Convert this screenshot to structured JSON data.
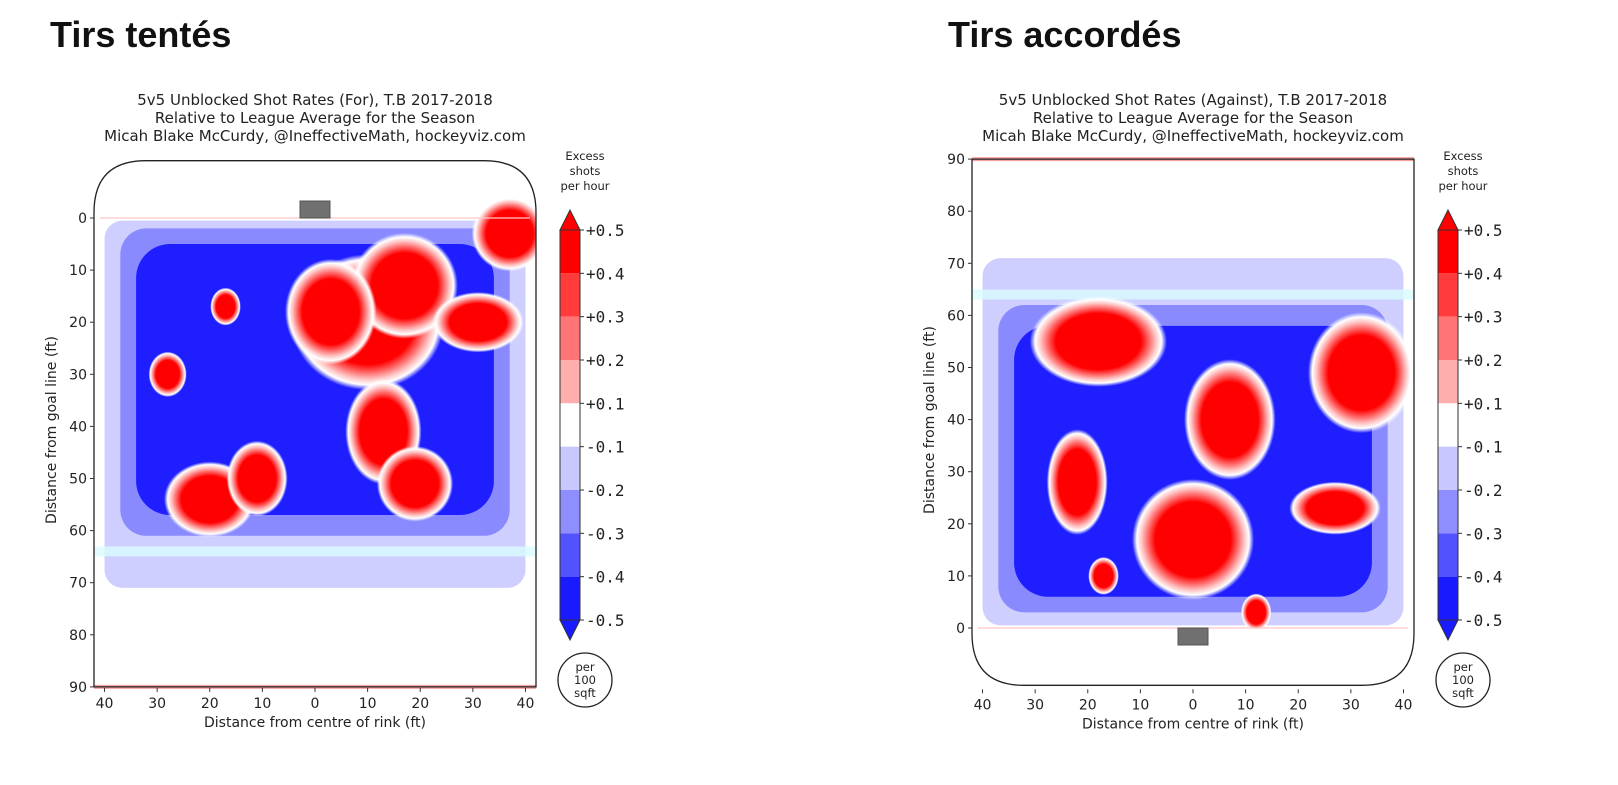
{
  "headings": {
    "left": "Tirs tentés",
    "right": "Tirs accordés"
  },
  "chart_data": [
    {
      "type": "heatmap",
      "title": [
        "5v5 Unblocked Shot Rates (For), T.B 2017-2018",
        "Relative to League Average for the Season",
        "Micah Blake McCurdy, @IneffectiveMath, hockeyviz.com"
      ],
      "xlabel": "Distance from centre of rink (ft)",
      "ylabel": "Distance from goal line (ft)",
      "x_ticks": [
        40,
        30,
        20,
        10,
        0,
        10,
        20,
        30,
        40
      ],
      "y_ticks": [
        0,
        10,
        20,
        30,
        40,
        50,
        60,
        70,
        80,
        90
      ],
      "y_direction": "down",
      "x_range": [
        -42,
        42
      ],
      "y_range": [
        -11,
        90
      ],
      "colorbar": {
        "title": [
          "Excess",
          "shots",
          "per hour"
        ],
        "ticks": [
          "+0.5",
          "+0.4",
          "+0.3",
          "+0.2",
          "+0.1",
          "-0.1",
          "-0.2",
          "-0.3",
          "-0.4",
          "-0.5"
        ],
        "unit": [
          "per",
          "100",
          "sqft"
        ]
      },
      "net_position": {
        "x": 0,
        "y": -2
      },
      "blobs": [
        {
          "x": 10,
          "y": 20,
          "rx": 10,
          "ry": 9,
          "level": 0.5
        },
        {
          "x": 17,
          "y": 13,
          "rx": 7,
          "ry": 7,
          "level": 0.5
        },
        {
          "x": 3,
          "y": 18,
          "rx": 6,
          "ry": 7,
          "level": 0.5
        },
        {
          "x": 31,
          "y": 20,
          "rx": 6,
          "ry": 4,
          "level": 0.5
        },
        {
          "x": 37,
          "y": 3,
          "rx": 5,
          "ry": 5,
          "level": 0.5
        },
        {
          "x": 13,
          "y": 41,
          "rx": 5,
          "ry": 7,
          "level": 0.5
        },
        {
          "x": 19,
          "y": 51,
          "rx": 5,
          "ry": 5,
          "level": 0.5
        },
        {
          "x": -20,
          "y": 54,
          "rx": 6,
          "ry": 5,
          "level": 0.5
        },
        {
          "x": -11,
          "y": 50,
          "rx": 4,
          "ry": 5,
          "level": 0.5
        },
        {
          "x": -28,
          "y": 30,
          "rx": 2.5,
          "ry": 3,
          "level": 0.5
        },
        {
          "x": -17,
          "y": 17,
          "rx": 2,
          "ry": 2.5,
          "level": 0.5
        }
      ]
    },
    {
      "type": "heatmap",
      "title": [
        "5v5 Unblocked Shot Rates (Against), T.B 2017-2018",
        "Relative to League Average for the Season",
        "Micah Blake McCurdy, @IneffectiveMath, hockeyviz.com"
      ],
      "xlabel": "Distance from centre of rink (ft)",
      "ylabel": "Distance from goal line (ft)",
      "x_ticks": [
        40,
        30,
        20,
        10,
        0,
        10,
        20,
        30,
        40
      ],
      "y_ticks": [
        90,
        80,
        70,
        60,
        50,
        40,
        30,
        20,
        10,
        0
      ],
      "y_direction": "up",
      "x_range": [
        -42,
        42
      ],
      "y_range": [
        -11,
        90
      ],
      "colorbar": {
        "title": [
          "Excess",
          "shots",
          "per hour"
        ],
        "ticks": [
          "+0.5",
          "+0.4",
          "+0.3",
          "+0.2",
          "+0.1",
          "-0.1",
          "-0.2",
          "-0.3",
          "-0.4",
          "-0.5"
        ],
        "unit": [
          "per",
          "100",
          "sqft"
        ]
      },
      "net_position": {
        "x": 0,
        "y": -2
      },
      "blobs": [
        {
          "x": -18,
          "y": 55,
          "rx": 9,
          "ry": 6,
          "level": 0.5
        },
        {
          "x": 7,
          "y": 40,
          "rx": 6,
          "ry": 8,
          "level": 0.5
        },
        {
          "x": 32,
          "y": 49,
          "rx": 7,
          "ry": 8,
          "level": 0.5
        },
        {
          "x": -22,
          "y": 28,
          "rx": 4,
          "ry": 7,
          "level": 0.5
        },
        {
          "x": 0,
          "y": 17,
          "rx": 8,
          "ry": 8,
          "level": 0.5
        },
        {
          "x": 27,
          "y": 23,
          "rx": 6,
          "ry": 3.5,
          "level": 0.5
        },
        {
          "x": -17,
          "y": 10,
          "rx": 2,
          "ry": 2.5,
          "level": 0.5
        },
        {
          "x": 12,
          "y": 3,
          "rx": 2,
          "ry": 2.5,
          "level": 0.5
        }
      ]
    }
  ]
}
